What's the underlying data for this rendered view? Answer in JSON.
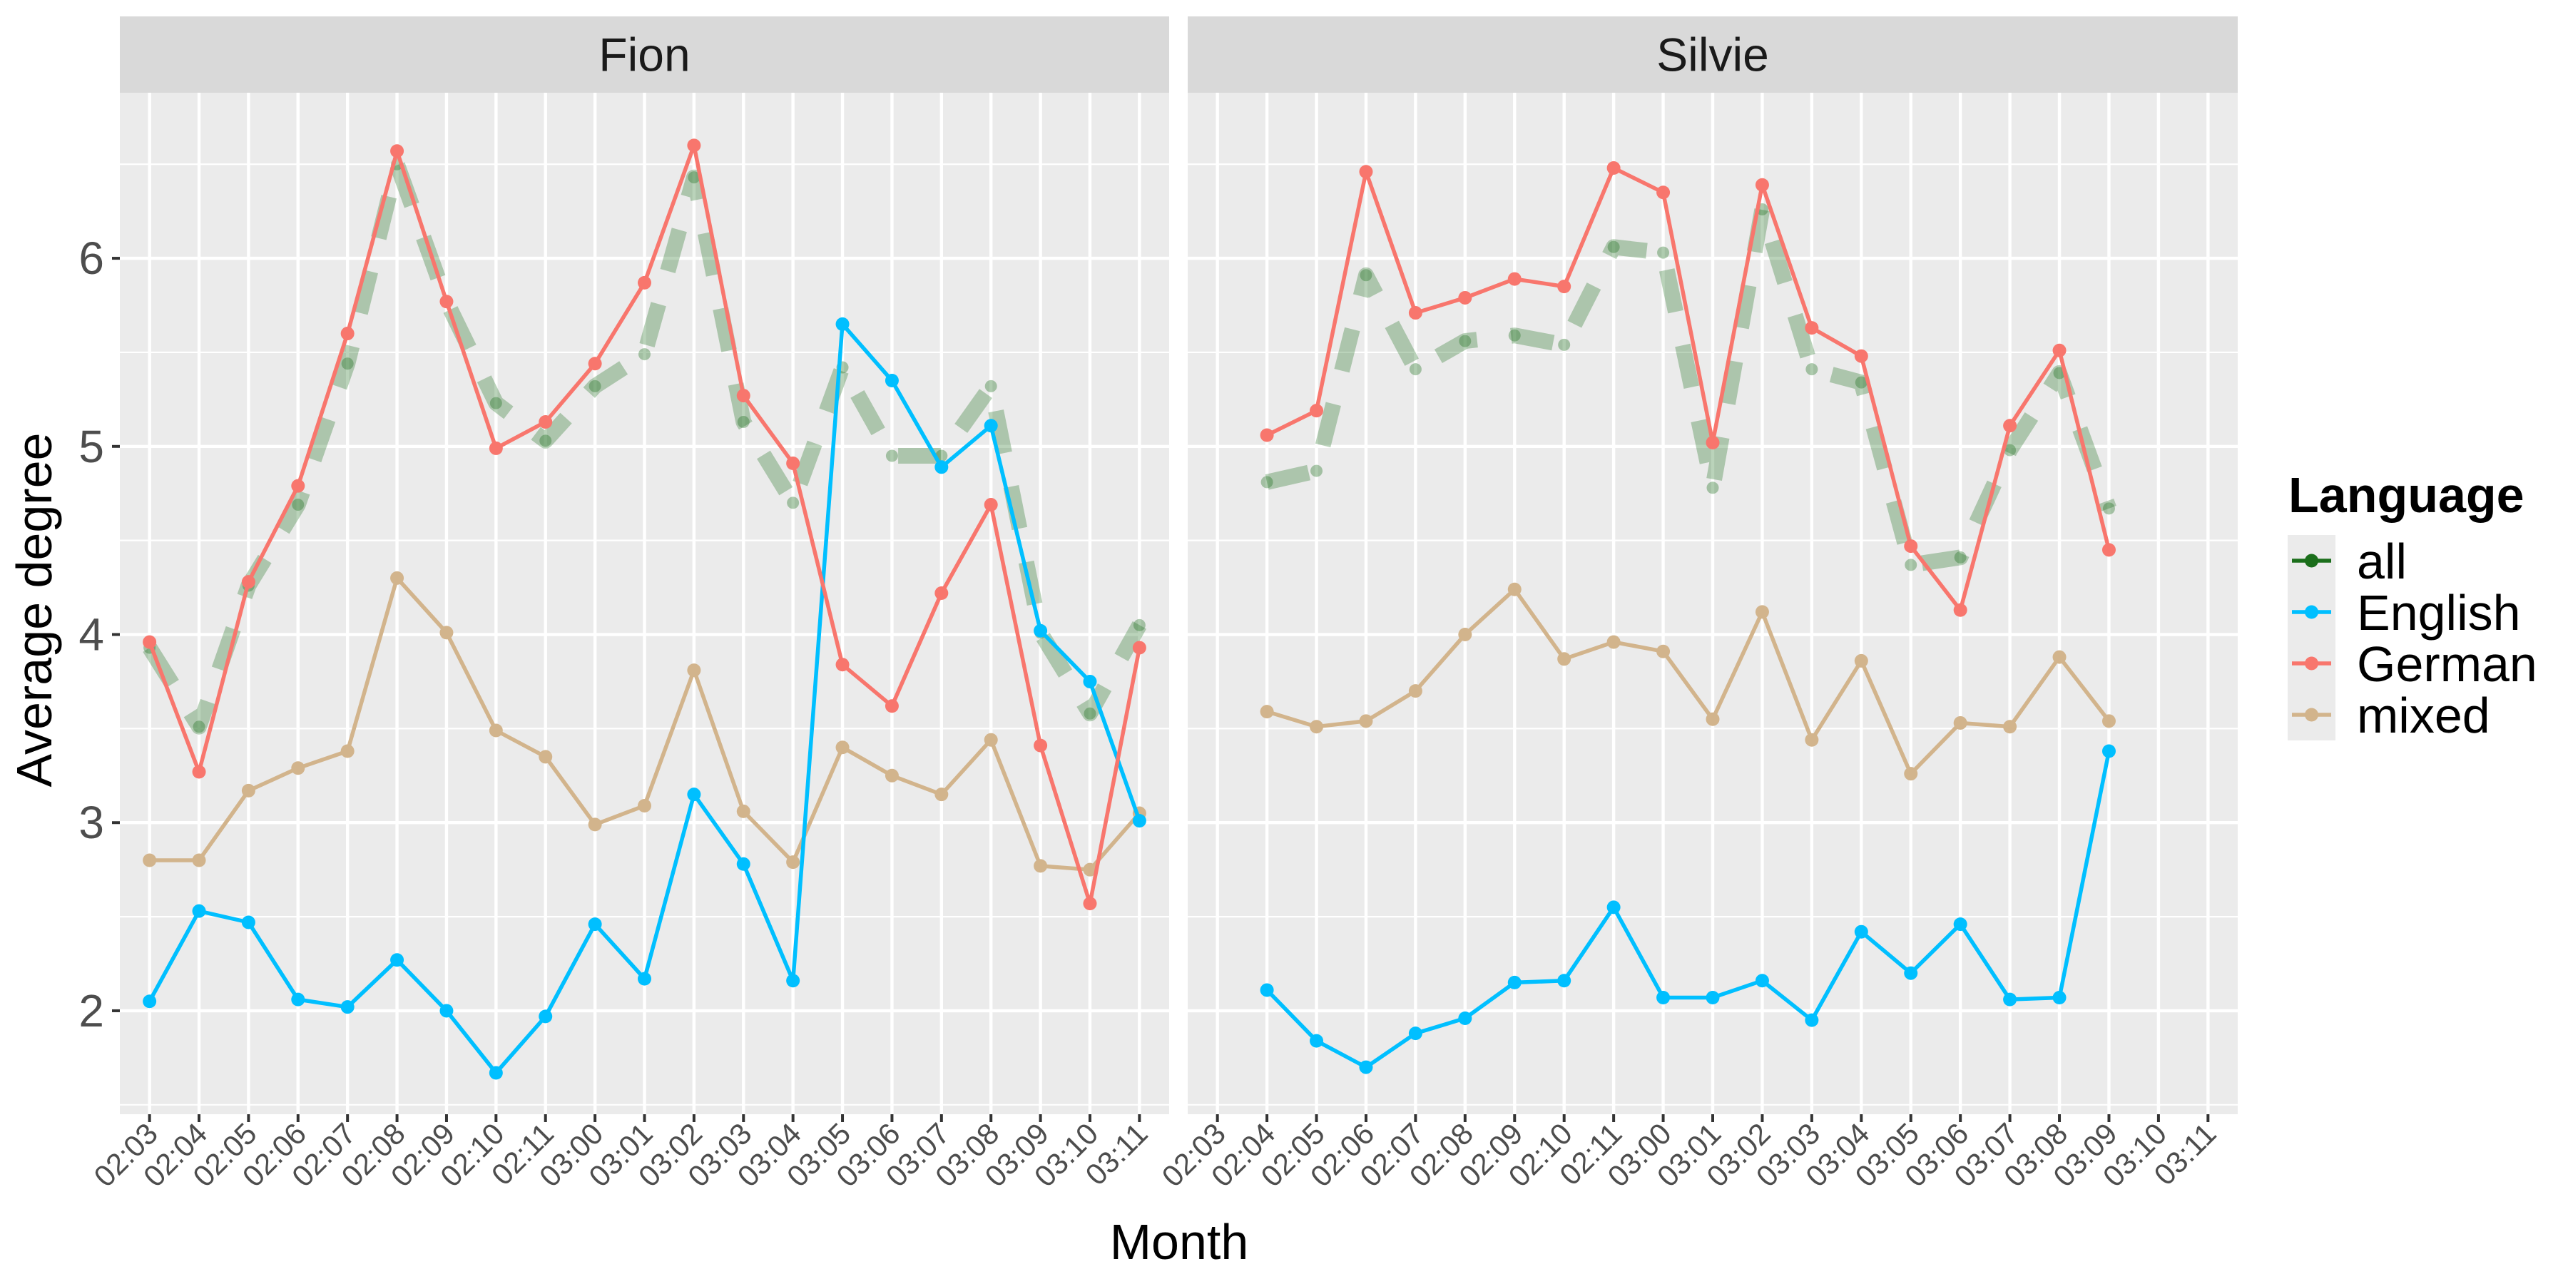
{
  "chart_data": {
    "type": "line",
    "xlabel": "Month",
    "ylabel": "Average degree",
    "ylim": [
      1.45,
      6.88
    ],
    "yticks": [
      2,
      3,
      4,
      5,
      6
    ],
    "categories": [
      "02:03",
      "02:04",
      "02:05",
      "02:06",
      "02:07",
      "02:08",
      "02:09",
      "02:10",
      "02:11",
      "03:00",
      "03:01",
      "03:02",
      "03:03",
      "03:04",
      "03:05",
      "03:06",
      "03:07",
      "03:08",
      "03:09",
      "03:10",
      "03:11"
    ],
    "grid": true,
    "legend": {
      "title": "Language",
      "placement": "right",
      "entries": [
        "all",
        "English",
        "German",
        "mixed"
      ]
    },
    "colors": {
      "all": "#1b6e1b",
      "English": "#00bfff",
      "German": "#f8766d",
      "mixed": "#d2b48c",
      "panel_bg": "#ebebeb",
      "strip_bg": "#d9d9d9",
      "grid": "#ffffff"
    },
    "panels": [
      {
        "title": "Fion",
        "series": [
          {
            "name": "all",
            "values": [
              3.93,
              3.51,
              4.26,
              4.69,
              5.44,
              6.5,
              5.77,
              5.23,
              5.03,
              5.32,
              5.49,
              6.43,
              5.13,
              4.7,
              5.42,
              4.95,
              4.95,
              5.32,
              4.01,
              3.58,
              4.05
            ]
          },
          {
            "name": "English",
            "values": [
              2.05,
              2.53,
              2.47,
              2.06,
              2.02,
              2.27,
              2.0,
              1.67,
              1.97,
              2.46,
              2.17,
              3.15,
              2.78,
              2.16,
              5.65,
              5.35,
              4.89,
              5.11,
              4.02,
              3.75,
              3.01
            ]
          },
          {
            "name": "German",
            "values": [
              3.96,
              3.27,
              4.28,
              4.79,
              5.6,
              6.57,
              5.77,
              4.99,
              5.13,
              5.44,
              5.87,
              6.6,
              5.27,
              4.91,
              3.84,
              3.62,
              4.22,
              4.69,
              3.41,
              2.57,
              3.93
            ]
          },
          {
            "name": "mixed",
            "values": [
              2.8,
              2.8,
              3.17,
              3.29,
              3.38,
              4.3,
              4.01,
              3.49,
              3.35,
              2.99,
              3.09,
              3.81,
              3.06,
              2.79,
              3.4,
              3.25,
              3.15,
              3.44,
              2.77,
              2.75,
              3.05
            ]
          }
        ]
      },
      {
        "title": "Silvie",
        "series": [
          {
            "name": "all",
            "values": [
              null,
              4.81,
              4.87,
              5.91,
              5.41,
              5.56,
              5.59,
              5.54,
              6.06,
              6.03,
              4.78,
              6.26,
              5.41,
              5.34,
              4.37,
              4.41,
              4.98,
              5.39,
              4.67,
              null,
              null
            ]
          },
          {
            "name": "English",
            "values": [
              null,
              2.11,
              1.84,
              1.7,
              1.88,
              1.96,
              2.15,
              2.16,
              2.55,
              2.07,
              2.07,
              2.16,
              1.95,
              2.42,
              2.2,
              2.46,
              2.06,
              2.07,
              3.38,
              null,
              null
            ]
          },
          {
            "name": "German",
            "values": [
              null,
              5.06,
              5.19,
              6.46,
              5.71,
              5.79,
              5.89,
              5.85,
              6.48,
              6.35,
              5.02,
              6.39,
              5.63,
              5.48,
              4.47,
              4.13,
              5.11,
              5.51,
              4.45,
              null,
              null
            ]
          },
          {
            "name": "mixed",
            "values": [
              null,
              3.59,
              3.51,
              3.54,
              3.7,
              4.0,
              4.24,
              3.87,
              3.96,
              3.91,
              3.55,
              4.12,
              3.44,
              3.86,
              3.26,
              3.53,
              3.51,
              3.88,
              3.54,
              null,
              null
            ]
          }
        ]
      }
    ]
  }
}
